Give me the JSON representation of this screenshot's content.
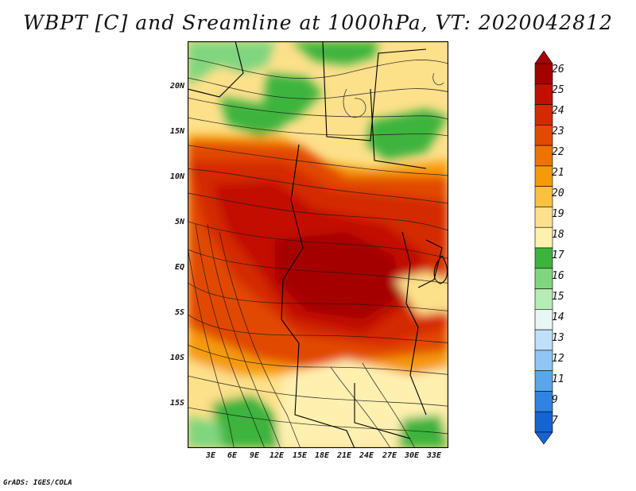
{
  "title": "WBPT [C] and Sreamline at 1000hPa, VT: 2020042812",
  "credit": "GrADS: IGES/COLA",
  "lat_labels": [
    "20N",
    "15N",
    "10N",
    "5N",
    "EQ",
    "5S",
    "10S",
    "15S"
  ],
  "lon_labels": [
    "3E",
    "6E",
    "9E",
    "12E",
    "15E",
    "18E",
    "21E",
    "24E",
    "27E",
    "30E",
    "33E"
  ],
  "colorbar": {
    "labels": [
      "26",
      "25",
      "24",
      "23",
      "22",
      "21",
      "20",
      "19",
      "18",
      "17",
      "16",
      "15",
      "14",
      "13",
      "12",
      "11",
      "9",
      "7"
    ],
    "colors": [
      "#a50000",
      "#c21000",
      "#d42a00",
      "#e24a00",
      "#ee7400",
      "#f59a0a",
      "#fac040",
      "#fde08a",
      "#fff0b0",
      "#3cb43c",
      "#7fd67f",
      "#b6ecb6",
      "#e8f7f4",
      "#bfe0f8",
      "#8fc6f4",
      "#5aa6ec",
      "#2e84e0",
      "#1464d2"
    ]
  }
}
